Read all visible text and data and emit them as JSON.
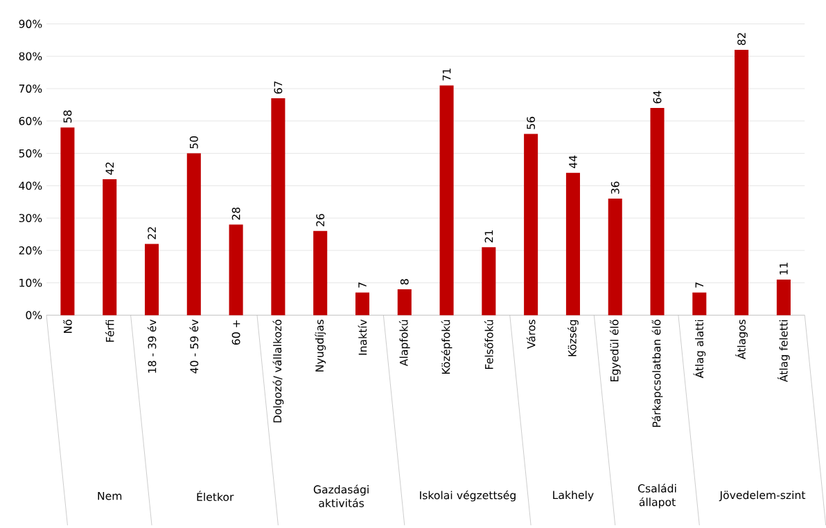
{
  "chart_data": {
    "type": "bar",
    "categories": [
      "Nő",
      "Férfi",
      "18 - 39 év",
      "40 - 59 év",
      "60 +",
      "Dolgozó/ vállalkozó",
      "Nyugdíjas",
      "Inaktív",
      "Alapfokú",
      "Középfokú",
      "Felsőfokú",
      "Város",
      "Község",
      "Egyedül élő",
      "Párkapcsolatban élő",
      "Átlag alatti",
      "Átlagos",
      "Átlag feletti"
    ],
    "values": [
      58,
      42,
      22,
      50,
      28,
      67,
      26,
      7,
      8,
      71,
      21,
      56,
      44,
      36,
      64,
      7,
      82,
      11
    ],
    "color": "#c00000",
    "ylim": [
      0,
      90
    ],
    "yticks": [
      {
        "value": 0,
        "label": "0%"
      },
      {
        "value": 10,
        "label": "10%"
      },
      {
        "value": 20,
        "label": "20%"
      },
      {
        "value": 30,
        "label": "30%"
      },
      {
        "value": 40,
        "label": "40%"
      },
      {
        "value": 50,
        "label": "50%"
      },
      {
        "value": 60,
        "label": "60%"
      },
      {
        "value": 70,
        "label": "70%"
      },
      {
        "value": 80,
        "label": "80%"
      },
      {
        "value": 90,
        "label": "90%"
      }
    ],
    "grid": "y",
    "data_labels": true,
    "annotations": [
      "Nem",
      "Életkor",
      "Gazdasági aktivitás",
      "Iskolai végzettség",
      "Lakhely",
      "Családi állapot",
      "Jövedelem-szint"
    ]
  }
}
